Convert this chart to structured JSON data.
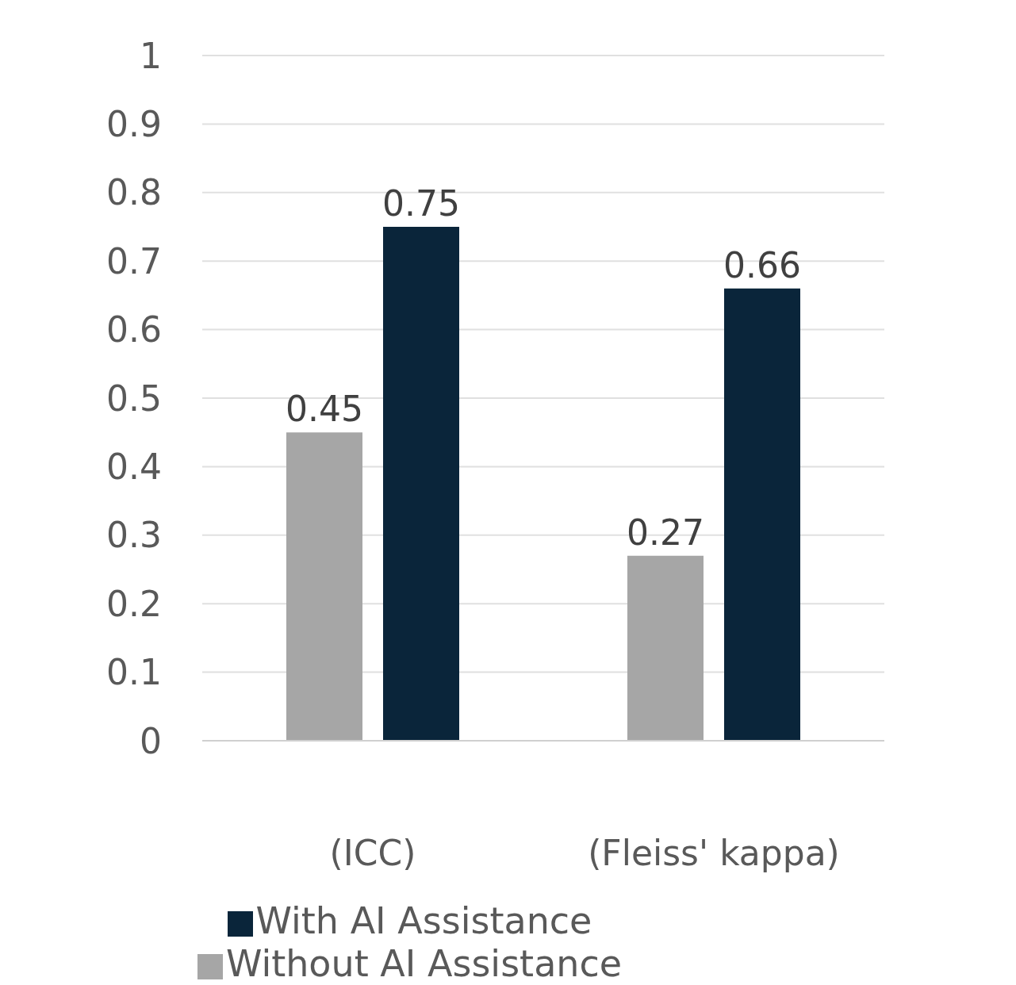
{
  "chart_data": {
    "type": "bar",
    "categories": [
      "(ICC)",
      "(Fleiss' kappa)"
    ],
    "series": [
      {
        "name": "Without AI Assistance",
        "color": "#a6a6a6",
        "values": [
          0.45,
          0.27
        ]
      },
      {
        "name": "With AI Assistance",
        "color": "#0a253a",
        "values": [
          0.75,
          0.66
        ]
      }
    ],
    "ylim": [
      0,
      1
    ],
    "yticks": [
      0,
      0.1,
      0.2,
      0.3,
      0.4,
      0.5,
      0.6,
      0.7,
      0.8,
      0.9,
      1
    ],
    "grid": "y",
    "legend": "bottom",
    "data_labels": true
  }
}
